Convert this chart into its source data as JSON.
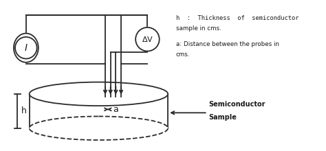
{
  "bg_color": "#ffffff",
  "line_color": "#2a2a2a",
  "text_color": "#1a1a1a",
  "fig_w": 4.74,
  "fig_h": 2.2,
  "annotation_line1": "h  :  Thickness  of  semiconductor",
  "annotation_line2": "sample in cms.",
  "annotation_line3": "a: Distance between the probes in",
  "annotation_line4": "cms.",
  "sample_label_line1": "Semiconductor",
  "sample_label_line2": "Sample"
}
